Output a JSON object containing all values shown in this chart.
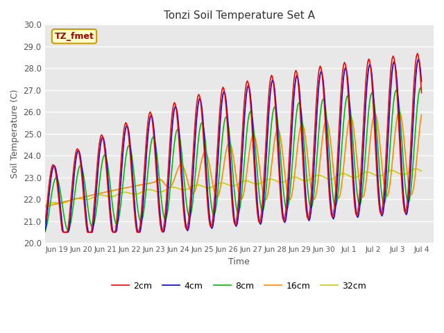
{
  "title": "Tonzi Soil Temperature Set A",
  "xlabel": "Time",
  "ylabel": "Soil Temperature (C)",
  "ylim": [
    20.0,
    30.0
  ],
  "yticks": [
    20.0,
    21.0,
    22.0,
    23.0,
    24.0,
    25.0,
    26.0,
    27.0,
    28.0,
    29.0,
    30.0
  ],
  "bg_color": "#e8e8e8",
  "fig_bg_color": "#ffffff",
  "grid_color": "#ffffff",
  "line_colors": {
    "2cm": "#ff0000",
    "4cm": "#0000dd",
    "8cm": "#00bb00",
    "16cm": "#ff8800",
    "32cm": "#cccc00"
  },
  "legend_labels": [
    "2cm",
    "4cm",
    "8cm",
    "16cm",
    "32cm"
  ],
  "annotation_text": "TZ_fmet",
  "annotation_color": "#aa0000",
  "annotation_bg": "#ffffcc",
  "annotation_border": "#cc9900",
  "xtick_labels": [
    "Jun 19",
    "Jun 20",
    "Jun 21",
    "Jun 22",
    "Jun 23",
    "Jun 24",
    "Jun 25",
    "Jun 26",
    "Jun 27",
    "Jun 28",
    "Jun 29",
    "Jun 30",
    "Jul 1",
    "Jul 2",
    "Jul 3",
    "Jul 4"
  ],
  "line_width": 1.2
}
